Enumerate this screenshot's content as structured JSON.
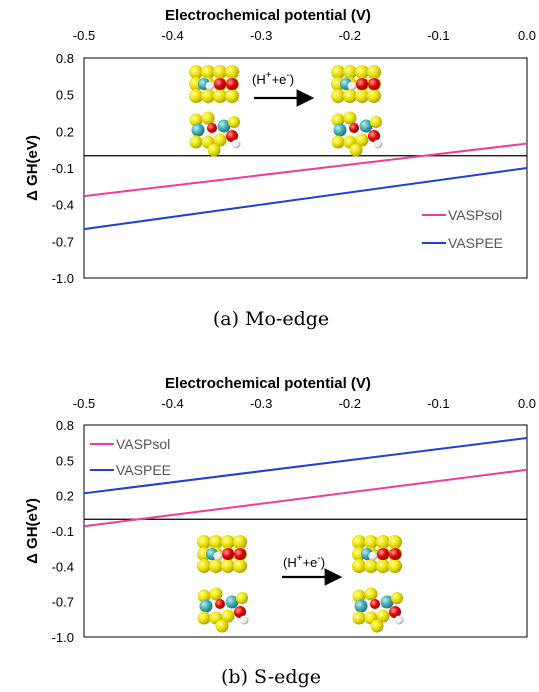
{
  "chart_data": [
    {
      "type": "line",
      "caption": "(a) Mo-edge",
      "xlabel": "Electrochemical potential (V)",
      "ylabel": "Δ GH(eV)",
      "xlim": [
        -0.5,
        0.0
      ],
      "ylim": [
        -1.0,
        0.8
      ],
      "xticks": [
        "-0.5",
        "-0.4",
        "-0.3",
        "-0.2",
        "-0.1",
        "0.0"
      ],
      "yticks": [
        "0.8",
        "0.5",
        "0.2",
        "-0.1",
        "-0.4",
        "-0.7",
        "-1.0"
      ],
      "legend_position": "bottom-right",
      "reaction_label": {
        "prefix": "(H",
        "sup1": "+",
        "mid": "+e",
        "sup2": "-",
        "suffix": ")"
      },
      "series": [
        {
          "name": "VASPsol",
          "color": "#ee3d96",
          "x": [
            -0.5,
            0.0
          ],
          "y": [
            -0.33,
            0.1
          ]
        },
        {
          "name": "VASPEE",
          "color": "#1f3fd6",
          "x": [
            -0.5,
            0.0
          ],
          "y": [
            -0.6,
            -0.1
          ]
        }
      ]
    },
    {
      "type": "line",
      "caption": "(b) S-edge",
      "xlabel": "Electrochemical potential (V)",
      "ylabel": "Δ GH(eV)",
      "xlim": [
        -0.5,
        0.0
      ],
      "ylim": [
        -1.0,
        0.8
      ],
      "xticks": [
        "-0.5",
        "-0.4",
        "-0.3",
        "-0.2",
        "-0.1",
        "0.0"
      ],
      "yticks": [
        "0.8",
        "0.5",
        "0.2",
        "-0.1",
        "-0.4",
        "-0.7",
        "-1.0"
      ],
      "legend_position": "top-left",
      "reaction_label": {
        "prefix": "(H",
        "sup1": "+",
        "mid": "+e",
        "sup2": "-",
        "suffix": ")"
      },
      "series": [
        {
          "name": "VASPsol",
          "color": "#ee3d96",
          "x": [
            -0.5,
            0.0
          ],
          "y": [
            -0.06,
            0.42
          ]
        },
        {
          "name": "VASPEE",
          "color": "#1f3fd6",
          "x": [
            -0.5,
            0.0
          ],
          "y": [
            0.22,
            0.69
          ]
        }
      ]
    }
  ]
}
